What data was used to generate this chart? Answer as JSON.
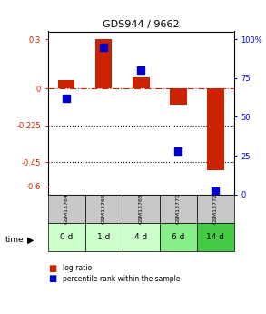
{
  "title": "GDS944 / 9662",
  "samples": [
    "GSM13764",
    "GSM13766",
    "GSM13768",
    "GSM13770",
    "GSM13772"
  ],
  "time_labels": [
    "0 d",
    "1 d",
    "4 d",
    "6 d",
    "14 d"
  ],
  "log_ratio": [
    0.05,
    0.3,
    0.07,
    -0.1,
    -0.5
  ],
  "percentile": [
    62,
    95,
    80,
    28,
    2
  ],
  "ylim_left": [
    -0.65,
    0.35
  ],
  "ylim_right": [
    0,
    105
  ],
  "yticks_left": [
    0.3,
    0,
    -0.225,
    -0.45,
    -0.6
  ],
  "yticks_right": [
    100,
    75,
    50,
    25,
    0
  ],
  "hline_y": 0,
  "dotted_lines": [
    -0.225,
    -0.45
  ],
  "bar_color": "#cc2200",
  "percentile_color": "#0000cc",
  "bar_width": 0.45,
  "percentile_marker_size": 28,
  "sample_bg": "#c8c8c8",
  "time_bg_colors": [
    "#ccffcc",
    "#ccffcc",
    "#ccffcc",
    "#88ee88",
    "#44cc44"
  ],
  "legend_lr_color": "#cc2200",
  "legend_pr_color": "#0000cc"
}
